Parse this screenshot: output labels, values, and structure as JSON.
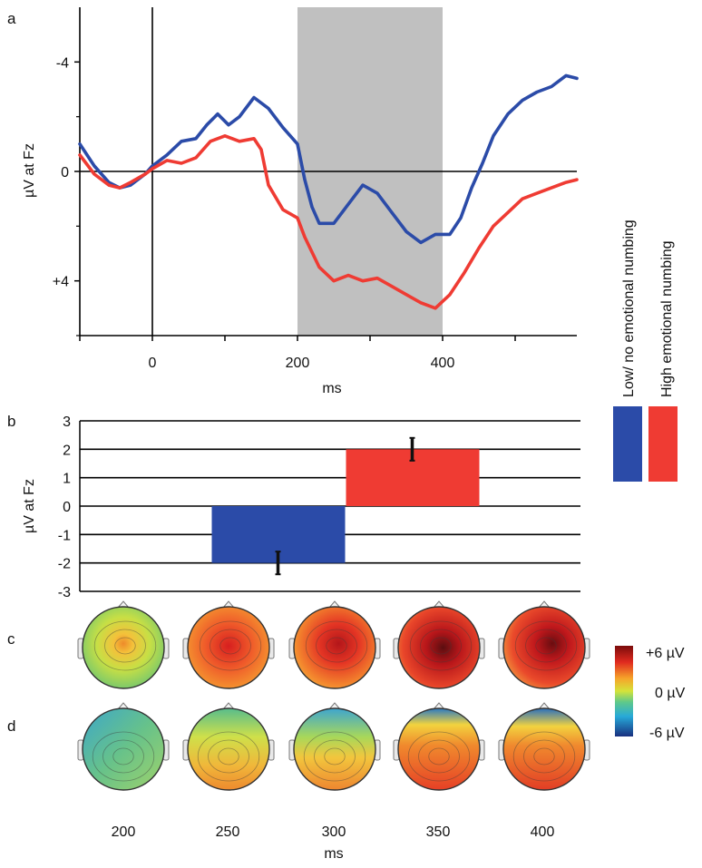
{
  "panel_labels": {
    "a": "a",
    "b": "b",
    "c": "c",
    "d": "d"
  },
  "legend": {
    "items": [
      {
        "label": "Low/ no emotional numbing",
        "color": "#2b4ba8"
      },
      {
        "label": "High emotional numbing",
        "color": "#ef3b33"
      }
    ]
  },
  "colorbar": {
    "max_label": "+6 µV",
    "mid_label": "0 µV",
    "min_label": "-6 µV"
  },
  "topo_times": [
    "200",
    "250",
    "300",
    "350",
    "400"
  ],
  "topo_xlabel": "ms",
  "chart_data": [
    {
      "type": "line",
      "ylabel": "µV at Fz",
      "xlabel": "ms",
      "xlim": [
        -100,
        585
      ],
      "ylim": [
        6,
        -6
      ],
      "inverted_y": true,
      "x_ticks": [
        0,
        200,
        400
      ],
      "y_tick_labels": [
        {
          "value": -4,
          "label": "-4"
        },
        {
          "value": 0,
          "label": "0"
        },
        {
          "value": 4,
          "label": "+4"
        }
      ],
      "shaded_window": [
        200,
        400
      ],
      "series": [
        {
          "name": "Low/ no emotional numbing",
          "color": "#2b4ba8",
          "x": [
            -100,
            -80,
            -60,
            -45,
            -30,
            -10,
            0,
            20,
            40,
            60,
            75,
            90,
            105,
            120,
            140,
            160,
            180,
            200,
            210,
            220,
            230,
            250,
            270,
            290,
            310,
            330,
            350,
            370,
            390,
            410,
            425,
            440,
            455,
            470,
            490,
            510,
            530,
            550,
            570,
            585
          ],
          "y": [
            -1.0,
            -0.2,
            0.4,
            0.6,
            0.5,
            0.1,
            -0.2,
            -0.6,
            -1.1,
            -1.2,
            -1.7,
            -2.1,
            -1.7,
            -2.0,
            -2.7,
            -2.3,
            -1.6,
            -1.0,
            0.3,
            1.3,
            1.9,
            1.9,
            1.2,
            0.5,
            0.8,
            1.5,
            2.2,
            2.6,
            2.3,
            2.3,
            1.7,
            0.6,
            -0.3,
            -1.3,
            -2.1,
            -2.6,
            -2.9,
            -3.1,
            -3.5,
            -3.4
          ]
        },
        {
          "name": "High emotional numbing",
          "color": "#ef3b33",
          "x": [
            -100,
            -80,
            -60,
            -45,
            -30,
            -10,
            0,
            20,
            40,
            60,
            80,
            100,
            120,
            140,
            150,
            160,
            180,
            200,
            210,
            230,
            250,
            270,
            290,
            310,
            330,
            350,
            370,
            390,
            410,
            430,
            450,
            470,
            490,
            510,
            530,
            550,
            570,
            585
          ],
          "y": [
            -0.6,
            0.1,
            0.5,
            0.6,
            0.4,
            0.1,
            -0.1,
            -0.4,
            -0.3,
            -0.5,
            -1.1,
            -1.3,
            -1.1,
            -1.2,
            -0.8,
            0.5,
            1.4,
            1.7,
            2.4,
            3.5,
            4.0,
            3.8,
            4.0,
            3.9,
            4.2,
            4.5,
            4.8,
            5.0,
            4.5,
            3.7,
            2.8,
            2.0,
            1.5,
            1.0,
            0.8,
            0.6,
            0.4,
            0.3
          ]
        }
      ]
    },
    {
      "type": "bar",
      "ylabel": "µV at Fz",
      "ylim": [
        -3,
        3
      ],
      "y_ticks": [
        3,
        2,
        1,
        0,
        -1,
        -2,
        -3
      ],
      "categories": [
        "Low/ no emotional numbing",
        "High emotional numbing"
      ],
      "values": [
        -2.0,
        2.0
      ],
      "errors": [
        0.4,
        0.4
      ],
      "colors": [
        "#2b4ba8",
        "#ef3b33"
      ]
    }
  ]
}
